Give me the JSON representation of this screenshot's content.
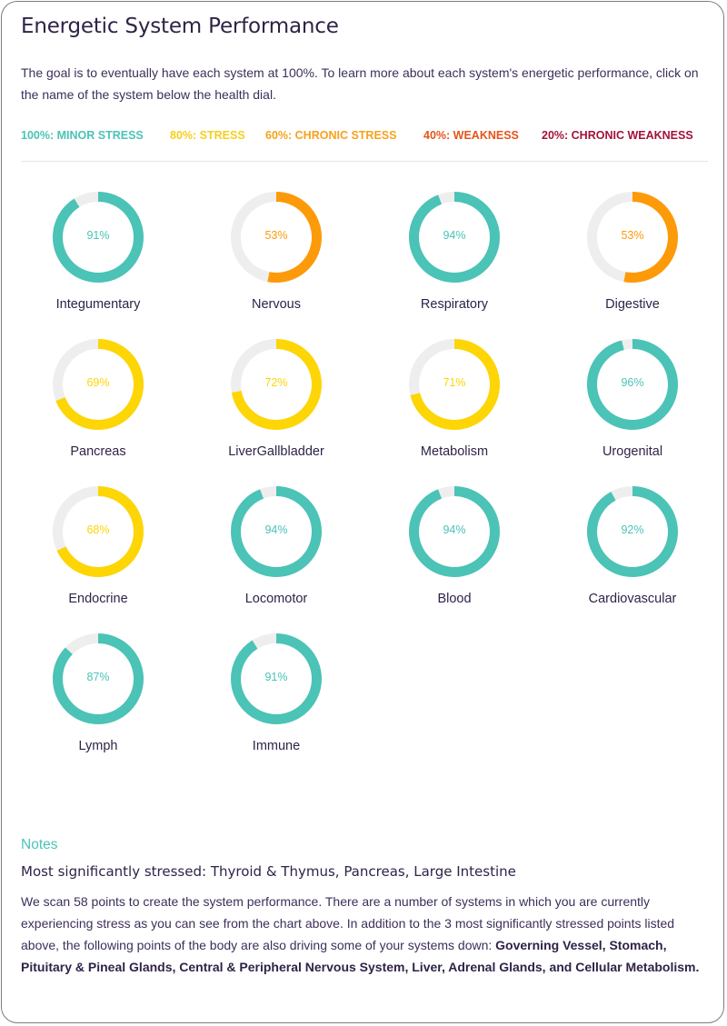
{
  "header": {
    "title": "Energetic System Performance",
    "intro": "The goal is to eventually have each system at 100%. To learn more about each system's energetic performance, click on the name of the system below the health dial."
  },
  "legend": [
    {
      "label": "100%: MINOR STRESS",
      "color": "#4bc3b6"
    },
    {
      "label": "80%: STRESS",
      "color": "#f5cf1d"
    },
    {
      "label": "60%: CHRONIC STRESS",
      "color": "#f7a21b"
    },
    {
      "label": "40%: WEAKNESS",
      "color": "#e4541a"
    },
    {
      "label": "20%: CHRONIC WEAKNESS",
      "color": "#a3123b"
    }
  ],
  "colors": {
    "teal": "#4bc3b6",
    "yellow": "#fed505",
    "orange": "#fd9a09",
    "track": "#eeeeee"
  },
  "systems": [
    {
      "name": "Integumentary",
      "value": 91,
      "label": "91%",
      "color": "teal"
    },
    {
      "name": "Nervous",
      "value": 53,
      "label": "53%",
      "color": "orange"
    },
    {
      "name": "Respiratory",
      "value": 94,
      "label": "94%",
      "color": "teal"
    },
    {
      "name": "Digestive",
      "value": 53,
      "label": "53%",
      "color": "orange"
    },
    {
      "name": "Pancreas",
      "value": 69,
      "label": "69%",
      "color": "yellow"
    },
    {
      "name": "LiverGallbladder",
      "value": 72,
      "label": "72%",
      "color": "yellow"
    },
    {
      "name": "Metabolism",
      "value": 71,
      "label": "71%",
      "color": "yellow"
    },
    {
      "name": "Urogenital",
      "value": 96,
      "label": "96%",
      "color": "teal"
    },
    {
      "name": "Endocrine",
      "value": 68,
      "label": "68%",
      "color": "yellow"
    },
    {
      "name": "Locomotor",
      "value": 94,
      "label": "94%",
      "color": "teal"
    },
    {
      "name": "Blood",
      "value": 94,
      "label": "94%",
      "color": "teal"
    },
    {
      "name": "Cardiovascular",
      "value": 92,
      "label": "92%",
      "color": "teal"
    },
    {
      "name": "Lymph",
      "value": 87,
      "label": "87%",
      "color": "teal"
    },
    {
      "name": "Immune",
      "value": 91,
      "label": "91%",
      "color": "teal"
    }
  ],
  "notes": {
    "heading": "Notes",
    "subheading": "Most significantly stressed: Thyroid & Thymus, Pancreas, Large Intestine",
    "body": "We scan 58 points to create the system performance. There are a number of systems in which you are currently experiencing stress as you can see from the chart above. In addition to the 3 most significantly stressed points listed above, the following points of the body are also driving some of your systems down: ",
    "body_bold": "Governing Vessel, Stomach, Pituitary & Pineal Glands, Central & Peripheral Nervous System, Liver, Adrenal Glands, and Cellular Metabolism."
  }
}
